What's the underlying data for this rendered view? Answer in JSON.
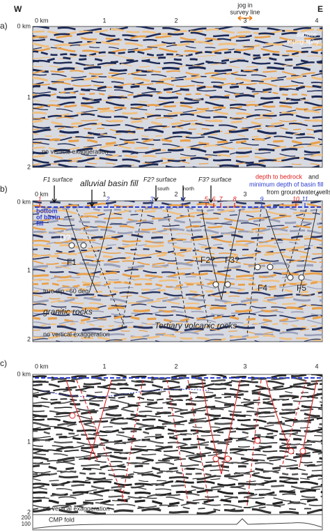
{
  "header": {
    "west": "W",
    "east": "E",
    "jog": [
      "jog in",
      "survey line"
    ]
  },
  "panel_a": {
    "label": "a)",
    "x_ticks": [
      "0 km",
      "1",
      "2",
      "3",
      "4"
    ],
    "y_ticks": [
      "0 km",
      "1",
      "2"
    ],
    "surface_topography": [
      "surface",
      "topography"
    ],
    "note": "no vertical exaggeration"
  },
  "panel_b": {
    "label": "b)",
    "x_ticks": [
      "0 km",
      "1",
      "2",
      "3",
      "4"
    ],
    "y_ticks": [
      "0 km",
      "1",
      "2"
    ],
    "f1_surface": "F1 surface",
    "alluvial_basin_fill": "alluvial basin fill",
    "f2_surface": "F2? surface",
    "south": "south",
    "north": "north",
    "f3_surface": "F3? surface",
    "legend": {
      "depth_to_bedrock": "depth to bedrock",
      "and": "and",
      "minimum_depth": "minimum depth of basin fill",
      "from_wells": "from groundwater wells"
    },
    "wells": [
      "1",
      "2",
      "3",
      "4",
      "5",
      "6",
      "7",
      "8",
      "9",
      "10",
      "11"
    ],
    "bottom_of_basin_fill": [
      "bottom",
      "of basin",
      "fill"
    ],
    "d": "D?",
    "faults": [
      "F1",
      "F2?",
      "F3?",
      "F4",
      "F5"
    ],
    "true_dip": "true dip ~60 deg",
    "granitic_rocks": "granitic rocks",
    "volcanic_rocks": "Tertiary volcanic rocks",
    "note": "no vertical exaggeration"
  },
  "panel_c": {
    "label": "c)",
    "x_ticks": [
      "0 km",
      "1",
      "2",
      "3",
      "4"
    ],
    "y_ticks": [
      "0 km",
      "1",
      "2"
    ],
    "note": "no vertical exaggeration",
    "cmp_fold": "CMP fold",
    "fold_ticks": [
      "200",
      "100"
    ]
  }
}
